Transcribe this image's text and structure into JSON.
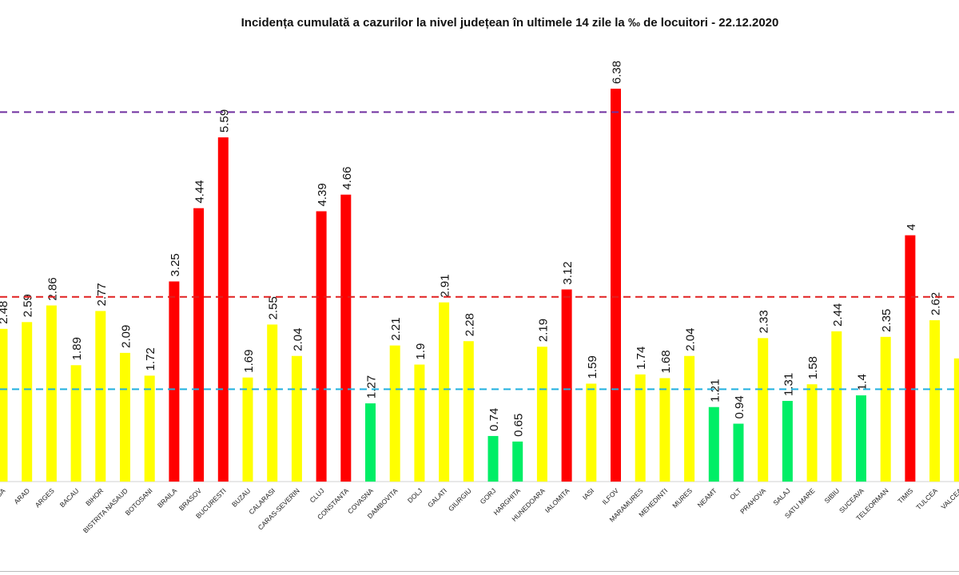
{
  "chart_data": {
    "type": "bar",
    "title": "Incidența cumulată a cazurilor la nivel județean în ultimele 14 zile la ‰ de locuitori - 22.12.2020",
    "xlabel": "",
    "ylabel": "",
    "ylim": [
      0,
      6.4
    ],
    "grid": false,
    "categories": [
      "ALBA",
      "ARAD",
      "ARGES",
      "BACAU",
      "BIHOR",
      "BISTRITA NASAUD",
      "BOTOSANI",
      "BRAILA",
      "BRASOV",
      "BUCURESTI",
      "BUZAU",
      "CALARASI",
      "CARAS-SEVERIN",
      "CLUJ",
      "CONSTANTA",
      "COVASNA",
      "DAMBOVITA",
      "DOLJ",
      "GALATI",
      "GIURGIU",
      "GORJ",
      "HARGHITA",
      "HUNEDOARA",
      "IALOMITA",
      "IASI",
      "ILFOV",
      "MARAMURES",
      "MEHEDINTI",
      "MURES",
      "NEAMT",
      "OLT",
      "PRAHOVA",
      "SALAJ",
      "SATU MARE",
      "SIBIU",
      "SUCEAVA",
      "TELEORMAN",
      "TIMIS",
      "TULCEA",
      "VALCEA"
    ],
    "values": [
      2.48,
      2.59,
      2.86,
      1.89,
      2.77,
      2.09,
      1.72,
      3.25,
      4.44,
      5.59,
      1.69,
      2.55,
      2.04,
      4.39,
      4.66,
      1.27,
      2.21,
      1.9,
      2.91,
      2.28,
      0.74,
      0.65,
      2.19,
      3.12,
      1.59,
      6.38,
      1.74,
      1.68,
      2.04,
      1.21,
      0.94,
      2.33,
      1.31,
      1.58,
      2.44,
      1.4,
      2.35,
      4,
      2.62,
      2.0
    ],
    "data_labels": [
      "2.48",
      "2.59",
      "2.86",
      "1.89",
      "2.77",
      "2.09",
      "1.72",
      "3.25",
      "4.44",
      "5.59",
      "1.69",
      "2.55",
      "2.04",
      "4.39",
      "4.66",
      "1.27",
      "2.21",
      "1.9",
      "2.91",
      "2.28",
      "0.74",
      "0.65",
      "2.19",
      "3.12",
      "1.59",
      "6.38",
      "1.74",
      "1.68",
      "2.04",
      "1.21",
      "0.94",
      "2.33",
      "1.31",
      "1.58",
      "2.44",
      "1.4",
      "2.35",
      "4",
      "2.62",
      ""
    ],
    "thresholds": [
      {
        "value": 6,
        "color": "#7030a0"
      },
      {
        "value": 3,
        "color": "#e02020"
      },
      {
        "value": 1.5,
        "color": "#20b0e0"
      }
    ],
    "colors": {
      "high": "#ff0000",
      "medium": "#ffff00",
      "low": "#00ee66"
    }
  }
}
